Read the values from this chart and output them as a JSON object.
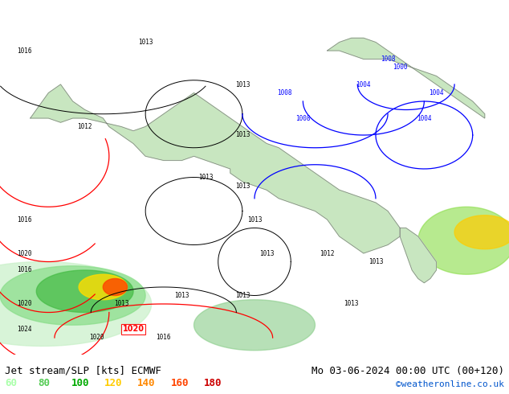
{
  "title_left": "Jet stream/SLP [kts] ECMWF",
  "title_right": "Mo 03-06-2024 00:00 UTC (00+120)",
  "credit": "©weatheronline.co.uk",
  "legend_values": [
    "60",
    "80",
    "100",
    "120",
    "140",
    "160",
    "180"
  ],
  "legend_colors": [
    "#aaffaa",
    "#55cc55",
    "#00aa00",
    "#ffcc00",
    "#ff8800",
    "#ff4400",
    "#cc0000"
  ],
  "background_color": "#d0e8f0",
  "land_color": "#c8e6c0",
  "map_bg": "#d0e8f0",
  "bottom_bar_color": "#ffffff",
  "title_font_size": 9,
  "credit_color": "#0055cc",
  "label_color_black": "#000000",
  "fig_width": 6.34,
  "fig_height": 4.9,
  "dpi": 100
}
